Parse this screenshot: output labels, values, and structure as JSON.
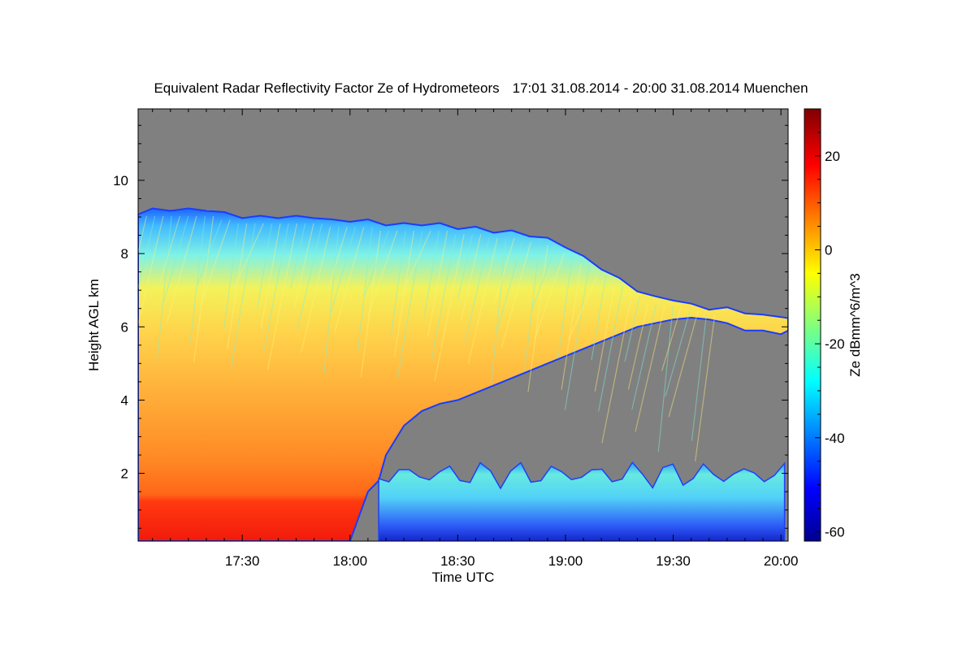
{
  "chart_data": {
    "type": "heatmap",
    "title": "Equivalent Radar Reflectivity Factor Ze of Hydrometeors",
    "time_range_label": "17:01 31.08.2014 - 20:00 31.08.2014 Muenchen",
    "xlabel": "Time UTC",
    "ylabel": "Height AGL km",
    "colorbar_label": "Ze dBmm^6/m^3",
    "x_range_minutes": [
      1021,
      1202
    ],
    "y_range_km": [
      0.15,
      11.95
    ],
    "x_ticks": [
      {
        "minutes": 1050,
        "label": "17:30"
      },
      {
        "minutes": 1080,
        "label": "18:00"
      },
      {
        "minutes": 1110,
        "label": "18:30"
      },
      {
        "minutes": 1140,
        "label": "19:00"
      },
      {
        "minutes": 1170,
        "label": "19:30"
      },
      {
        "minutes": 1200,
        "label": "20:00"
      }
    ],
    "y_ticks": [
      {
        "km": 2,
        "label": "2"
      },
      {
        "km": 4,
        "label": "4"
      },
      {
        "km": 6,
        "label": "6"
      },
      {
        "km": 8,
        "label": "8"
      },
      {
        "km": 10,
        "label": "10"
      }
    ],
    "colorbar_range": [
      -62,
      30
    ],
    "colorbar_ticks": [
      {
        "value": 20,
        "label": "20"
      },
      {
        "value": 0,
        "label": "0"
      },
      {
        "value": -20,
        "label": "-20"
      },
      {
        "value": -40,
        "label": "-40"
      },
      {
        "value": -60,
        "label": "-60"
      }
    ],
    "background_color": "#808080",
    "regions": {
      "cloud_top_km": [
        [
          1021,
          9.1
        ],
        [
          1025,
          9.2
        ],
        [
          1030,
          9.2
        ],
        [
          1035,
          9.2
        ],
        [
          1040,
          9.2
        ],
        [
          1045,
          9.1
        ],
        [
          1050,
          9.0
        ],
        [
          1055,
          9.0
        ],
        [
          1060,
          9.0
        ],
        [
          1065,
          9.0
        ],
        [
          1070,
          9.0
        ],
        [
          1075,
          8.9
        ],
        [
          1080,
          8.9
        ],
        [
          1085,
          8.9
        ],
        [
          1090,
          8.8
        ],
        [
          1095,
          8.8
        ],
        [
          1100,
          8.8
        ],
        [
          1105,
          8.8
        ],
        [
          1110,
          8.7
        ],
        [
          1115,
          8.7
        ],
        [
          1120,
          8.6
        ],
        [
          1125,
          8.6
        ],
        [
          1130,
          8.5
        ],
        [
          1135,
          8.4
        ],
        [
          1140,
          8.2
        ],
        [
          1145,
          7.9
        ],
        [
          1150,
          7.6
        ],
        [
          1155,
          7.3
        ],
        [
          1160,
          7.0
        ],
        [
          1165,
          6.8
        ],
        [
          1170,
          6.75
        ],
        [
          1175,
          6.6
        ],
        [
          1180,
          6.5
        ],
        [
          1185,
          6.5
        ],
        [
          1190,
          6.4
        ],
        [
          1195,
          6.3
        ],
        [
          1200,
          6.3
        ],
        [
          1202,
          6.2
        ]
      ],
      "cloud_base_km": [
        [
          1021,
          0.15
        ],
        [
          1075,
          0.15
        ],
        [
          1080,
          0.15
        ],
        [
          1085,
          1.5
        ],
        [
          1088,
          1.8
        ],
        [
          1090,
          2.5
        ],
        [
          1095,
          3.3
        ],
        [
          1100,
          3.7
        ],
        [
          1105,
          3.9
        ],
        [
          1110,
          4.0
        ],
        [
          1115,
          4.2
        ],
        [
          1120,
          4.4
        ],
        [
          1125,
          4.6
        ],
        [
          1130,
          4.8
        ],
        [
          1135,
          5.0
        ],
        [
          1140,
          5.2
        ],
        [
          1145,
          5.4
        ],
        [
          1150,
          5.6
        ],
        [
          1155,
          5.8
        ],
        [
          1160,
          6.0
        ],
        [
          1165,
          6.1
        ],
        [
          1170,
          6.2
        ],
        [
          1175,
          6.25
        ],
        [
          1180,
          6.2
        ],
        [
          1185,
          6.1
        ],
        [
          1190,
          5.9
        ],
        [
          1195,
          5.9
        ],
        [
          1200,
          5.8
        ],
        [
          1202,
          5.9
        ]
      ],
      "low_cloud_layer": {
        "start_minutes": 1088,
        "end_minutes": 1201,
        "top_km": 2.3,
        "base_km": 0.15
      }
    }
  }
}
